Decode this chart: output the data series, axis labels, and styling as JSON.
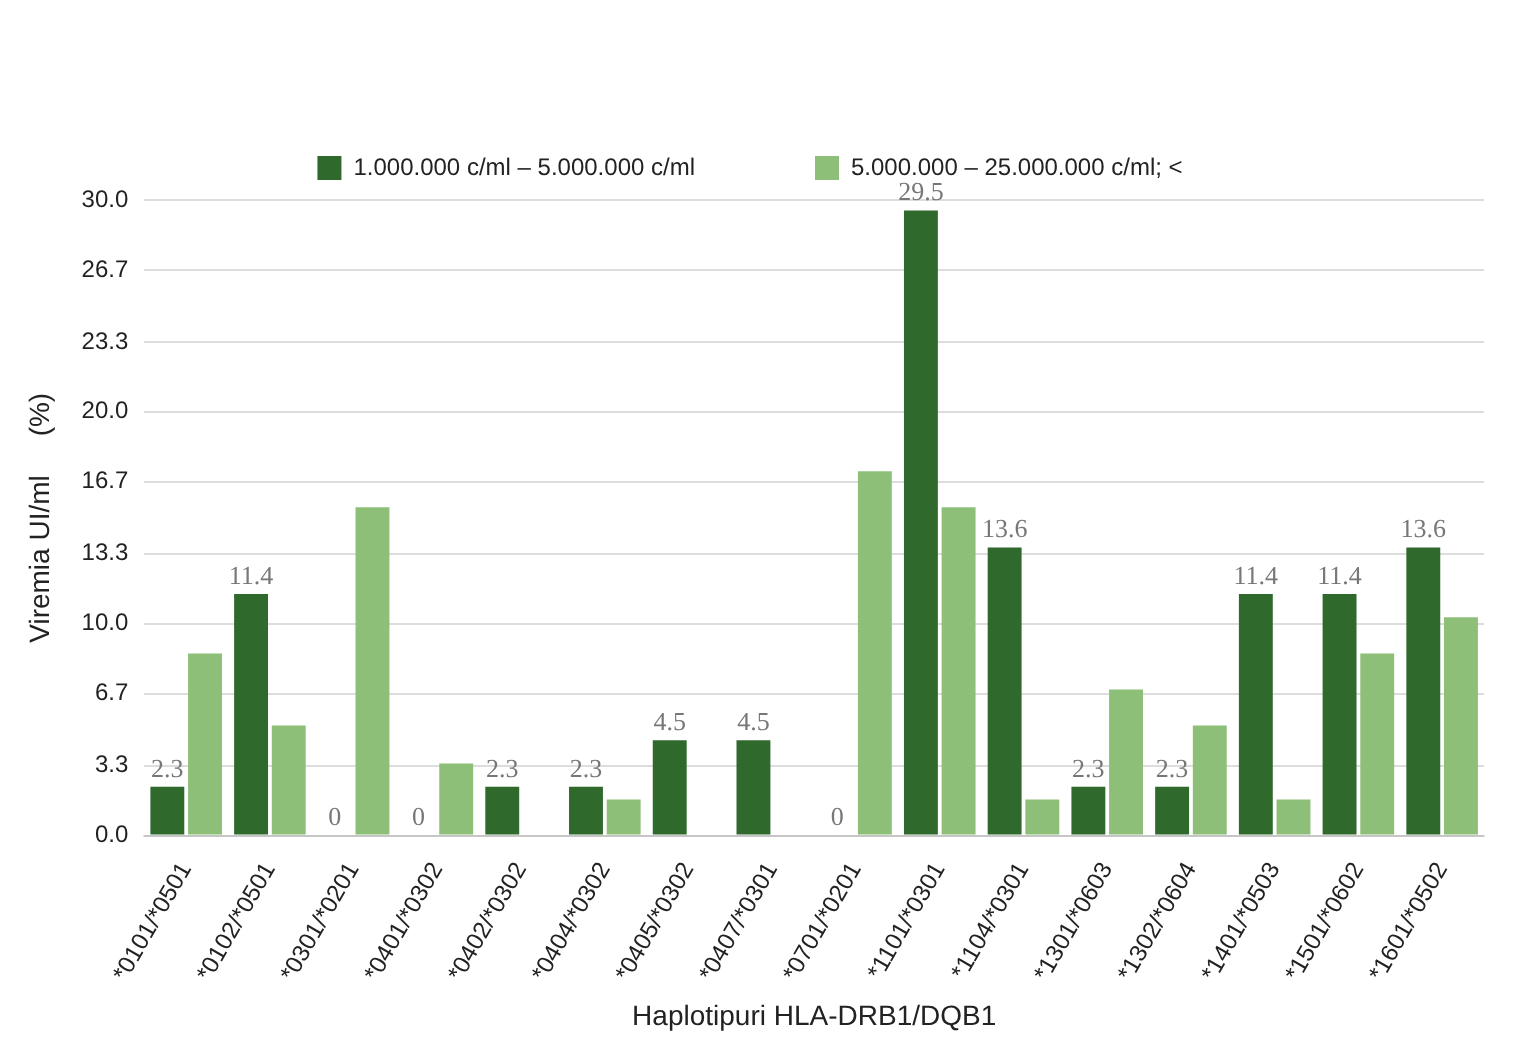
{
  "chart_data": {
    "type": "bar",
    "xlabel": "Haplotipuri HLA-DRB1/DQB1",
    "ylabel": "Viremia UI/ml     (%)",
    "categories": [
      "*0101/*0501",
      "*0102/*0501",
      "*0301/*0201",
      "*0401/*0302",
      "*0402/*0302",
      "*0404/*0302",
      "*0405/*0302",
      "*0407/*0301",
      "*0701/*0201",
      "*1101/*0301",
      "*1104/*0301",
      "*1301/*0603",
      "*1302/*0604",
      "*1401/*0503",
      "*1501/*0602",
      "*1601/*0502"
    ],
    "series": [
      {
        "name": "1.000.000 c/ml – 5.000.000 c/ml",
        "color": "#2f6a2c",
        "values": [
          2.3,
          11.4,
          0,
          0,
          2.3,
          2.3,
          4.5,
          4.5,
          0,
          29.5,
          13.6,
          2.3,
          2.3,
          11.4,
          11.4,
          13.6
        ],
        "value_labels": [
          "2.3",
          "11.4",
          "0",
          "0",
          "2.3",
          "2.3",
          "4.5",
          "4.5",
          "0",
          "29.5",
          "13.6",
          "2.3",
          "2.3",
          "11.4",
          "11.4",
          "13.6"
        ]
      },
      {
        "name": "5.000.000 – 25.000.000 c/ml; <",
        "color": "#8dbf78",
        "values": [
          8.6,
          5.2,
          15.5,
          3.4,
          0,
          1.7,
          0,
          0,
          17.2,
          15.5,
          1.7,
          6.9,
          5.2,
          1.7,
          8.6,
          10.3
        ]
      }
    ],
    "ylim": [
      0,
      30
    ],
    "yticks": [
      {
        "value": 0,
        "label": "0.0"
      },
      {
        "value": 3.3,
        "label": "3.3"
      },
      {
        "value": 6.7,
        "label": "6.7"
      },
      {
        "value": 10,
        "label": "10.0"
      },
      {
        "value": 13.3,
        "label": "13.3"
      },
      {
        "value": 16.7,
        "label": "16.7"
      },
      {
        "value": 20,
        "label": "20.0"
      },
      {
        "value": 23.3,
        "label": "23.3"
      },
      {
        "value": 26.7,
        "label": "26.7"
      },
      {
        "value": 30,
        "label": "30.0"
      }
    ],
    "grid": "y",
    "legend": "top"
  }
}
